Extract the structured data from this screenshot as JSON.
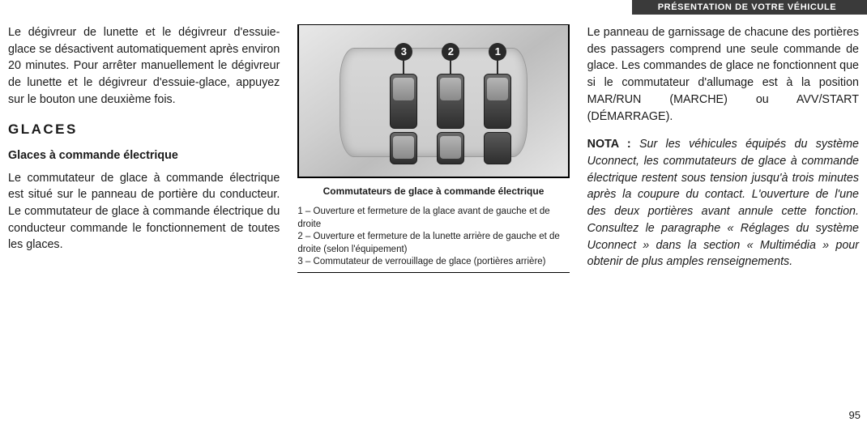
{
  "header": {
    "title": "PRÉSENTATION DE VOTRE VÉHICULE"
  },
  "page_number": "95",
  "left": {
    "para1": "Le dégivreur de lunette et le dégivreur d'essuie-glace se désactivent automatiquement après environ 20 minutes. Pour arrêter manuellement le dégivreur de lunette et le dégivreur d'essuie-glace, appuyez sur le bouton une deuxième fois.",
    "heading_glaces": "GLACES",
    "heading_sub": "Glaces à commande électrique",
    "para2": "Le commutateur de glace à commande électrique est situé sur le panneau de portière du conducteur. Le commutateur de glace à commande électrique du conducteur commande le fonctionnement de toutes les glaces."
  },
  "figure": {
    "caption": "Commutateurs de glace à commande électrique",
    "labels": {
      "one": "1",
      "two": "2",
      "three": "3"
    },
    "legend1": "1 – Ouverture et fermeture de la glace avant de gauche et de droite",
    "legend2": "2 – Ouverture et fermeture de la lunette arrière de gauche et de droite (selon l'équipement)",
    "legend3": "3 – Commutateur de verrouillage de glace (portières arrière)"
  },
  "right": {
    "para1": "Le panneau de garnissage de chacune des portières des passagers comprend une seule commande de glace. Les commandes de glace ne fonctionnent que si le commutateur d'allumage est à la position MAR/RUN (MARCHE) ou AVV/START (DÉMARRAGE).",
    "nota_label": "NOTA :",
    "nota_body": "Sur les véhicules équipés du système Uconnect, les commutateurs de glace à commande électrique restent sous tension jusqu'à trois minutes après la coupure du contact. L'ouverture de l'une des deux portières avant annule cette fonction. Consultez le paragraphe « Réglages du système Uconnect » dans la section « Multimédia » pour obtenir de plus amples renseignements."
  },
  "colors": {
    "header_bg": "#3a3a3a",
    "text": "#1a1a1a"
  }
}
